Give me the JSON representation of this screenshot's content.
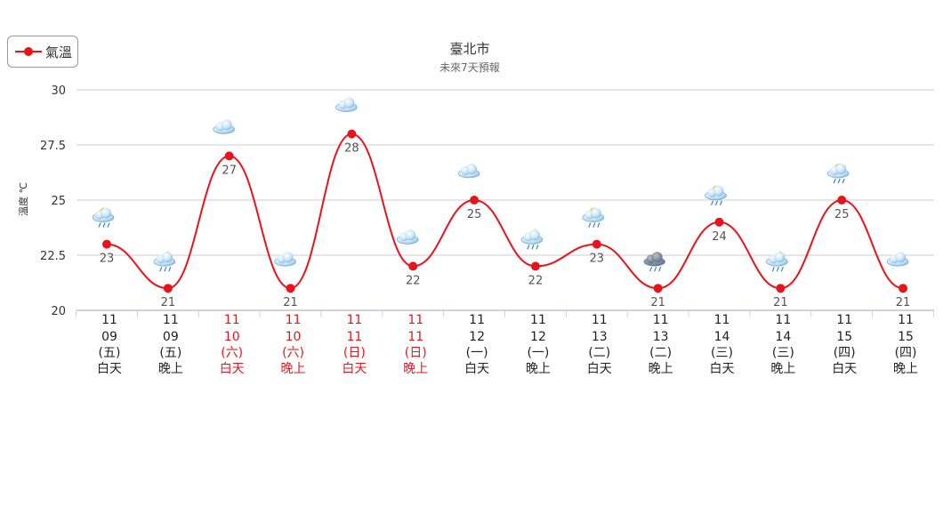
{
  "chart_data": {
    "type": "line",
    "title": "臺北市",
    "subtitle": "未來7天預報",
    "ylabel": "溫度 ℃",
    "ylim": [
      20,
      30
    ],
    "yticks": [
      20,
      22.5,
      25,
      27.5,
      30
    ],
    "grid": true,
    "legend_position": "top-left",
    "series": [
      {
        "name": "氣溫",
        "color": "#e8141c",
        "values": [
          23,
          21,
          27,
          21,
          28,
          22,
          25,
          22,
          23,
          21,
          24,
          21,
          25,
          21
        ]
      }
    ],
    "categories": [
      {
        "month": "11",
        "day": "09",
        "weekday": "(五)",
        "period": "白天",
        "holiday": false,
        "icon": "partly-cloudy-rain-icon"
      },
      {
        "month": "11",
        "day": "09",
        "weekday": "(五)",
        "period": "晚上",
        "holiday": false,
        "icon": "cloudy-night-rain-icon"
      },
      {
        "month": "11",
        "day": "10",
        "weekday": "(六)",
        "period": "白天",
        "holiday": true,
        "icon": "cloudy-icon"
      },
      {
        "month": "11",
        "day": "10",
        "weekday": "(六)",
        "period": "晚上",
        "holiday": true,
        "icon": "cloudy-icon"
      },
      {
        "month": "11",
        "day": "11",
        "weekday": "(日)",
        "period": "白天",
        "holiday": true,
        "icon": "cloudy-icon"
      },
      {
        "month": "11",
        "day": "11",
        "weekday": "(日)",
        "period": "晚上",
        "holiday": true,
        "icon": "cloudy-icon"
      },
      {
        "month": "11",
        "day": "12",
        "weekday": "(一)",
        "period": "白天",
        "holiday": false,
        "icon": "cloudy-icon"
      },
      {
        "month": "11",
        "day": "12",
        "weekday": "(一)",
        "period": "晚上",
        "holiday": false,
        "icon": "cloudy-night-rain-icon"
      },
      {
        "month": "11",
        "day": "13",
        "weekday": "(二)",
        "period": "白天",
        "holiday": false,
        "icon": "partly-cloudy-rain-icon"
      },
      {
        "month": "11",
        "day": "13",
        "weekday": "(二)",
        "period": "晚上",
        "holiday": false,
        "icon": "dark-cloud-rain-icon"
      },
      {
        "month": "11",
        "day": "14",
        "weekday": "(三)",
        "period": "白天",
        "holiday": false,
        "icon": "partly-cloudy-rain-icon"
      },
      {
        "month": "11",
        "day": "14",
        "weekday": "(三)",
        "period": "晚上",
        "holiday": false,
        "icon": "cloudy-night-rain-icon"
      },
      {
        "month": "11",
        "day": "15",
        "weekday": "(四)",
        "period": "白天",
        "holiday": false,
        "icon": "partly-cloudy-rain-icon"
      },
      {
        "month": "11",
        "day": "15",
        "weekday": "(四)",
        "period": "晚上",
        "holiday": false,
        "icon": "cloudy-icon"
      }
    ],
    "colors": {
      "normal_label": "#222222",
      "holiday_label": "#e8141c",
      "grid": "#cccccc",
      "axis": "#c8d4e6"
    }
  }
}
